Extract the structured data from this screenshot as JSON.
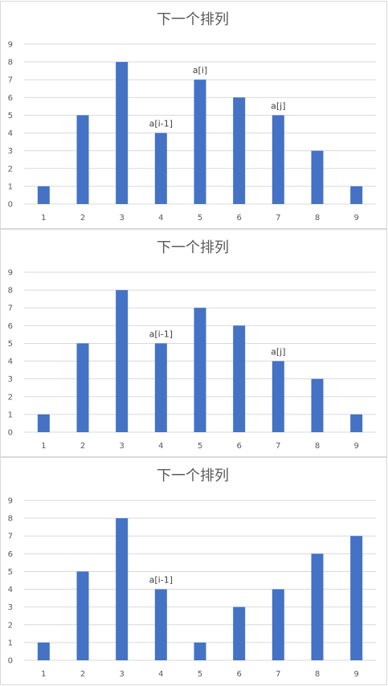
{
  "chart_data": [
    {
      "type": "bar",
      "title": "下一个排列",
      "categories": [
        "1",
        "2",
        "3",
        "4",
        "5",
        "6",
        "7",
        "8",
        "9"
      ],
      "values": [
        1,
        5,
        8,
        4,
        7,
        6,
        5,
        3,
        1
      ],
      "ylim": [
        0,
        9
      ],
      "yticks": [
        0,
        1,
        2,
        3,
        4,
        5,
        6,
        7,
        8,
        9
      ],
      "grid": true,
      "bar_color": "#4472c4",
      "annotations": [
        {
          "category": "4",
          "text": "a[i-1]"
        },
        {
          "category": "5",
          "text": "a[i]"
        },
        {
          "category": "7",
          "text": "a[j]"
        }
      ]
    },
    {
      "type": "bar",
      "title": "下一个排列",
      "categories": [
        "1",
        "2",
        "3",
        "4",
        "5",
        "6",
        "7",
        "8",
        "9"
      ],
      "values": [
        1,
        5,
        8,
        5,
        7,
        6,
        4,
        3,
        1
      ],
      "ylim": [
        0,
        9
      ],
      "yticks": [
        0,
        1,
        2,
        3,
        4,
        5,
        6,
        7,
        8,
        9
      ],
      "grid": true,
      "bar_color": "#4472c4",
      "annotations": [
        {
          "category": "4",
          "text": "a[i-1]"
        },
        {
          "category": "7",
          "text": "a[j]"
        }
      ]
    },
    {
      "type": "bar",
      "title": "下一个排列",
      "categories": [
        "1",
        "2",
        "3",
        "4",
        "5",
        "6",
        "7",
        "8",
        "9"
      ],
      "values": [
        1,
        5,
        8,
        4,
        1,
        3,
        4,
        6,
        7
      ],
      "ylim": [
        0,
        9
      ],
      "yticks": [
        0,
        1,
        2,
        3,
        4,
        5,
        6,
        7,
        8,
        9
      ],
      "grid": true,
      "bar_color": "#4472c4",
      "annotations": [
        {
          "category": "4",
          "text": "a[i-1]"
        }
      ]
    }
  ]
}
